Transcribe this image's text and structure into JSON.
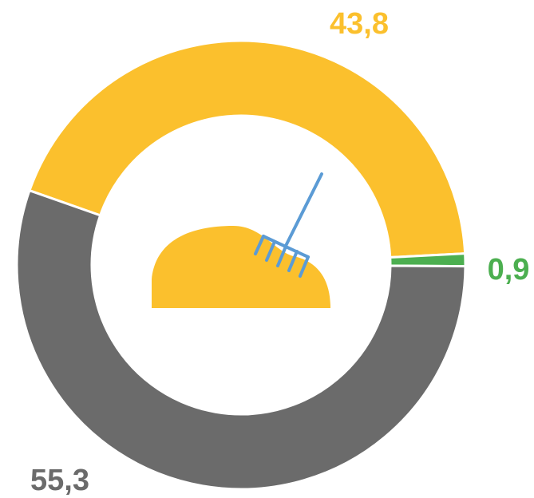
{
  "chart_data": {
    "type": "donut",
    "categories": [
      null,
      null,
      null
    ],
    "series": [
      {
        "values": [
          43.8,
          0.9,
          55.3
        ],
        "value_labels": [
          "43,8",
          "0,9",
          "55,3"
        ],
        "colors": [
          "#fbc02d",
          "#4caf50",
          "#6b6b6b"
        ]
      }
    ]
  }
}
